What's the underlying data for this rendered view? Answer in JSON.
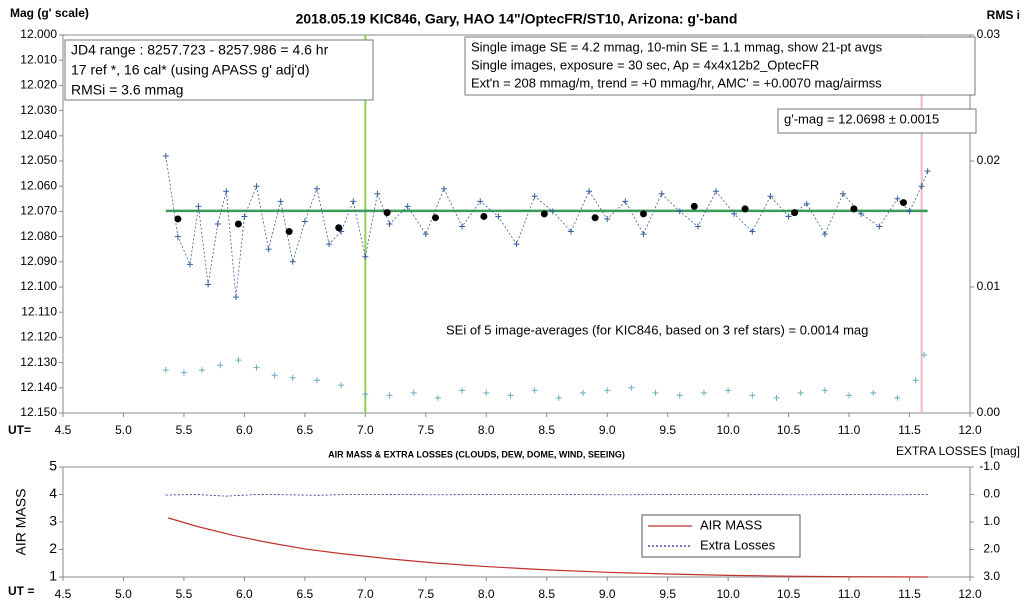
{
  "chart_data": [
    {
      "type": "scatter",
      "title": "2018.05.19  KIC846,  Gary, HAO 14\"/OptecFR/ST10,  Arizona:  g'-band",
      "y_label": "Mag (g' scale)",
      "y2_label": "RMS i",
      "x_label": "UT=",
      "xlim": [
        4.5,
        12.0
      ],
      "xticks": [
        4.5,
        {
          "value": 5,
          "label": "5.0"
        },
        5.5,
        {
          "value": 6,
          "label": "6.0"
        },
        6.5,
        {
          "value": 7,
          "label": "7.0"
        },
        7.5,
        {
          "value": 8,
          "label": "8.0"
        },
        8.5,
        {
          "value": 9,
          "label": "9.0"
        },
        9.5,
        {
          "value": 10,
          "label": "10.0"
        },
        10.5,
        {
          "value": 11,
          "label": "11.0"
        },
        11.5,
        {
          "value": 12,
          "label": "12.0"
        }
      ],
      "ylim": [
        12.15,
        12.0
      ],
      "yticks": [
        {
          "value": 12.0,
          "label": "12.000"
        },
        {
          "value": 12.01,
          "label": "12.010"
        },
        {
          "value": 12.02,
          "label": "12.020"
        },
        {
          "value": 12.03,
          "label": "12.030"
        },
        {
          "value": 12.04,
          "label": "12.040"
        },
        {
          "value": 12.05,
          "label": "12.050"
        },
        {
          "value": 12.06,
          "label": "12.060"
        },
        {
          "value": 12.07,
          "label": "12.070"
        },
        {
          "value": 12.08,
          "label": "12.080"
        },
        {
          "value": 12.09,
          "label": "12.090"
        },
        {
          "value": 12.1,
          "label": "12.100"
        },
        {
          "value": 12.11,
          "label": "12.110"
        },
        {
          "value": 12.12,
          "label": "12.120"
        },
        {
          "value": 12.13,
          "label": "12.130"
        },
        {
          "value": 12.14,
          "label": "12.140"
        },
        {
          "value": 12.15,
          "label": "12.150"
        }
      ],
      "y2lim": [
        0,
        0.03
      ],
      "y2ticks": [
        {
          "value": 0,
          "label": "0.00"
        },
        0.01,
        0.02,
        0.03
      ],
      "series": [
        {
          "color": "#3a5fa0",
          "marker": "plus",
          "line": "dotted",
          "x": [
            5.35,
            5.45,
            5.55,
            5.62,
            5.7,
            5.78,
            5.85,
            5.93,
            6.0,
            6.1,
            6.2,
            6.3,
            6.4,
            6.5,
            6.6,
            6.7,
            6.8,
            6.9,
            7.0,
            7.1,
            7.2,
            7.35,
            7.5,
            7.65,
            7.8,
            7.95,
            8.1,
            8.25,
            8.4,
            8.55,
            8.7,
            8.85,
            9.0,
            9.15,
            9.3,
            9.45,
            9.6,
            9.75,
            9.9,
            10.05,
            10.2,
            10.35,
            10.5,
            10.65,
            10.8,
            10.95,
            11.1,
            11.25,
            11.4,
            11.5,
            11.6,
            11.65
          ],
          "values": [
            12.048,
            12.08,
            12.091,
            12.068,
            12.099,
            12.075,
            12.062,
            12.104,
            12.072,
            12.06,
            12.085,
            12.066,
            12.09,
            12.074,
            12.061,
            12.083,
            12.078,
            12.066,
            12.088,
            12.063,
            12.075,
            12.068,
            12.079,
            12.061,
            12.076,
            12.066,
            12.072,
            12.083,
            12.064,
            12.07,
            12.078,
            12.062,
            12.073,
            12.066,
            12.079,
            12.063,
            12.07,
            12.076,
            12.062,
            12.071,
            12.078,
            12.064,
            12.072,
            12.067,
            12.079,
            12.063,
            12.071,
            12.076,
            12.065,
            12.07,
            12.06,
            12.054
          ]
        },
        {
          "color": "#000000",
          "marker": "dot",
          "x": [
            5.45,
            5.95,
            6.37,
            6.78,
            7.18,
            7.58,
            7.98,
            8.48,
            8.9,
            9.3,
            9.72,
            10.14,
            10.55,
            11.04,
            11.45
          ],
          "values": [
            12.073,
            12.075,
            12.078,
            12.0765,
            12.0705,
            12.0725,
            12.072,
            12.071,
            12.0725,
            12.071,
            12.068,
            12.069,
            12.0705,
            12.069,
            12.0665
          ]
        },
        {
          "color": "#6aaec0",
          "marker": "plus",
          "axis": "y2",
          "x": [
            5.35,
            5.5,
            5.65,
            5.8,
            5.95,
            6.1,
            6.25,
            6.4,
            6.6,
            6.8,
            7.0,
            7.2,
            7.4,
            7.6,
            7.8,
            8.0,
            8.2,
            8.4,
            8.6,
            8.8,
            9.0,
            9.2,
            9.4,
            9.6,
            9.8,
            10.0,
            10.2,
            10.4,
            10.6,
            10.8,
            11.0,
            11.2,
            11.4,
            11.55,
            11.62
          ],
          "values": [
            0.0034,
            0.0032,
            0.0034,
            0.0038,
            0.0042,
            0.0036,
            0.003,
            0.0028,
            0.0026,
            0.0022,
            0.0015,
            0.0014,
            0.0016,
            0.0012,
            0.0018,
            0.0016,
            0.0014,
            0.0018,
            0.0012,
            0.0016,
            0.0018,
            0.002,
            0.0016,
            0.0014,
            0.0016,
            0.0018,
            0.0014,
            0.0012,
            0.0016,
            0.0018,
            0.0014,
            0.0016,
            0.0012,
            0.0026,
            0.0046
          ]
        }
      ],
      "hlines": [
        {
          "value": 12.0698,
          "color": "#3a9a5a",
          "xlim": [
            5.35,
            11.65
          ]
        }
      ],
      "vlines": [
        {
          "value": 7.0,
          "color": "#8fd14f"
        },
        {
          "value": 11.6,
          "color": "#f4b6c0"
        }
      ],
      "annotations": [
        {
          "lines": [
            "JD4 range : 8257.723 - 8257.986 =  4.6  hr",
            "17 ref *, 16 cal* (using APASS g' adj'd)",
            "RMSi = 3.6 mmag"
          ]
        },
        {
          "lines": [
            "Single image SE = 4.2 mmag, 10-min SE = 1.1 mmag, show  21-pt avgs",
            "Single images, exposure = 30 sec, Ap = 4x4x12b2_OptecFR",
            "Ext'n = 208 mmag/m, trend =  +0 mmag/hr, AMC' = +0.0070 mag/airmss"
          ]
        },
        {
          "lines": [
            "g'-mag = 12.0698 ± 0.0015"
          ]
        },
        {
          "lines": [
            "SEi of 5 image-averages (for KIC846, based on 3 ref stars) = 0.0014  mag"
          ]
        }
      ]
    },
    {
      "type": "line",
      "title": "AIR MASS & EXTRA LOSSES (CLOUDS, DEW, DOME, WIND, SEEING)",
      "y_label": "AIR MASS",
      "y2_label": "EXTRA LOSSES [mag]",
      "x_label": "UT =",
      "xlim": [
        4.5,
        12.0
      ],
      "xticks": [
        4.5,
        {
          "value": 5,
          "label": "5.0"
        },
        5.5,
        {
          "value": 6,
          "label": "6.0"
        },
        6.5,
        {
          "value": 7,
          "label": "7.0"
        },
        7.5,
        {
          "value": 8,
          "label": "8.0"
        },
        8.5,
        {
          "value": 9,
          "label": "9.0"
        },
        9.5,
        {
          "value": 10,
          "label": "10.0"
        },
        10.5,
        {
          "value": 11,
          "label": "11.0"
        },
        11.5,
        {
          "value": 12,
          "label": "12.0"
        }
      ],
      "ylim": [
        1,
        5
      ],
      "yticks": [
        1,
        2,
        3,
        4,
        5
      ],
      "y2lim": [
        3.0,
        -1.0
      ],
      "y2ticks": [
        {
          "value": -1,
          "label": "-1.0"
        },
        {
          "value": 0,
          "label": "0.0"
        },
        {
          "value": 1,
          "label": "1.0"
        },
        {
          "value": 2,
          "label": "2.0"
        },
        {
          "value": 3,
          "label": "3.0"
        }
      ],
      "series": [
        {
          "name": "AIR MASS",
          "color": "#c0302a",
          "line": "solid",
          "x": [
            5.37,
            5.6,
            5.9,
            6.2,
            6.5,
            6.8,
            7.2,
            7.6,
            8.0,
            8.5,
            9.0,
            9.5,
            10.0,
            10.5,
            11.0,
            11.65
          ],
          "values": [
            3.15,
            2.85,
            2.52,
            2.25,
            2.02,
            1.85,
            1.66,
            1.5,
            1.38,
            1.26,
            1.17,
            1.11,
            1.06,
            1.03,
            1.01,
            1.0
          ]
        },
        {
          "name": "Extra Losses",
          "color": "#1a2a9a",
          "line": "dotted",
          "axis": "y2",
          "x": [
            5.35,
            5.6,
            5.85,
            6.1,
            6.35,
            6.6,
            6.85,
            7.1,
            7.6,
            8.1,
            8.6,
            9.1,
            9.6,
            10.1,
            10.6,
            11.1,
            11.4,
            11.65
          ],
          "values": [
            0.02,
            0.0,
            0.06,
            0.0,
            0.01,
            0.03,
            0.0,
            0.0,
            0.01,
            0.0,
            0.0,
            0.01,
            0.0,
            0.0,
            0.01,
            0.0,
            0.01,
            0.0
          ]
        }
      ],
      "legend": "lower-right"
    }
  ]
}
